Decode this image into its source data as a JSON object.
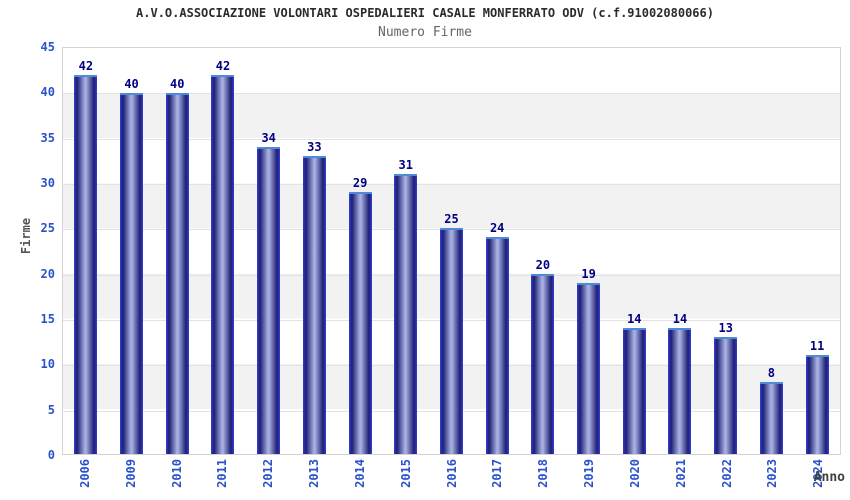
{
  "header": {
    "title": "A.V.O.ASSOCIAZIONE VOLONTARI OSPEDALIERI CASALE MONFERRATO ODV (c.f.91002080066)",
    "subtitle": "Numero Firme"
  },
  "chart_data": {
    "type": "bar",
    "title": "Numero Firme",
    "categories": [
      "2006",
      "2009",
      "2010",
      "2011",
      "2012",
      "2013",
      "2014",
      "2015",
      "2016",
      "2017",
      "2018",
      "2019",
      "2020",
      "2021",
      "2022",
      "2023",
      "2024"
    ],
    "values": [
      42,
      40,
      40,
      42,
      34,
      33,
      29,
      31,
      25,
      24,
      20,
      19,
      14,
      14,
      13,
      8,
      11
    ],
    "xlabel": "Anno",
    "ylabel": "Firme",
    "ylim": [
      0,
      45
    ],
    "yticks": [
      45,
      40,
      35,
      30,
      25,
      20,
      15,
      10,
      5,
      0
    ],
    "grid": true,
    "band_fill": "alternating horizontal bands",
    "legend_position": "none",
    "colors": {
      "bar_dark": "#1e1e74",
      "bar_light": "#a6b0e0",
      "bar_edge": "#3040d0",
      "bar_cap": "#4d8ad8",
      "value_label": "#000080",
      "tick_label": "#2b52cc",
      "axis_label": "#555555",
      "band_gray": "#f2f2f2",
      "gridline": "#e2e2e2",
      "plot_border": "#d4d4d4"
    }
  }
}
